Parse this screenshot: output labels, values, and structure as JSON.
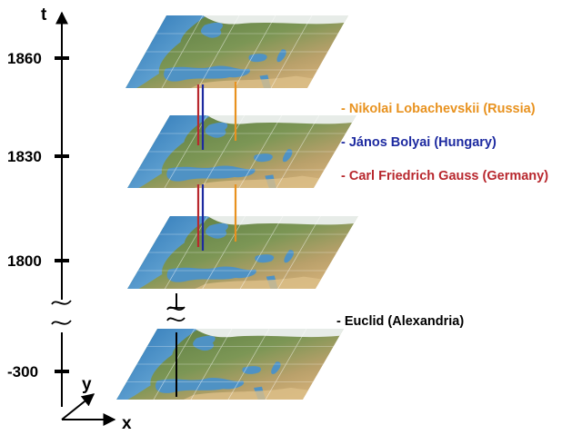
{
  "axes": {
    "time_label": "t",
    "x_label": "x",
    "y_label": "y",
    "ticks": [
      "1860",
      "1830",
      "1800",
      "-300"
    ]
  },
  "legend": [
    {
      "text": "- Nikolai Lobachevskii (Russia)",
      "color": "#e8921f"
    },
    {
      "text": "- János Bolyai (Hungary)",
      "color": "#1d2aa0"
    },
    {
      "text": "- Carl Friedrich Gauss (Germany)",
      "color": "#b8282e"
    },
    {
      "text": "- Euclid (Alexandria)",
      "color": "#000000"
    }
  ],
  "maps": [
    {
      "name": "europe-map-1860"
    },
    {
      "name": "europe-map-1830"
    },
    {
      "name": "europe-map-1800"
    },
    {
      "name": "europe-map-300bc"
    }
  ],
  "colors": {
    "sea": "#4f92c4",
    "land_green": "#6f8d4e",
    "land_desert": "#cfae7a",
    "snow": "#e7ece8",
    "gauss": "#b8282e",
    "bolyai": "#1d2aa0",
    "lobachevskii": "#e8921f",
    "euclid": "#000000"
  }
}
